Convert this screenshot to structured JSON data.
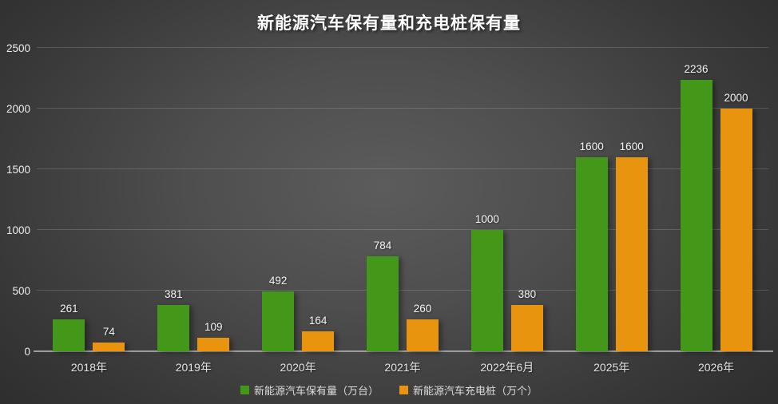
{
  "title": "新能源汽车保有量和充电桩保有量",
  "colors": {
    "vehicle_series": "#449819",
    "charger_series": "#e8940e",
    "background_center": "#5c5c5c",
    "background_edge": "#262626",
    "gridline": "rgba(255,255,255,0.16)",
    "axis_line": "#9a9a9a",
    "label_text": "#f5f5f5"
  },
  "legend": {
    "items": [
      {
        "label": "新能源汽车保有量（万台）",
        "color": "#449819"
      },
      {
        "label": "新能源汽车充电桩（万个）",
        "color": "#e8940e"
      }
    ]
  },
  "chart_data": {
    "type": "bar",
    "title": "新能源汽车保有量和充电桩保有量",
    "categories": [
      "2018年",
      "2019年",
      "2020年",
      "2021年",
      "2022年6月",
      "2025年",
      "2026年"
    ],
    "series": [
      {
        "name": "新能源汽车保有量（万台）",
        "color": "#449819",
        "values": [
          261,
          381,
          492,
          784,
          1000,
          1600,
          2236
        ]
      },
      {
        "name": "新能源汽车充电桩（万个）",
        "color": "#e8940e",
        "values": [
          74,
          109,
          164,
          260,
          380,
          1600,
          2000
        ]
      }
    ],
    "xlabel": "",
    "ylabel": "",
    "ylim": [
      0,
      2500
    ],
    "yticks": [
      0,
      500,
      1000,
      1500,
      2000,
      2500
    ],
    "grid": true,
    "legend_position": "bottom",
    "value_labels": true
  }
}
